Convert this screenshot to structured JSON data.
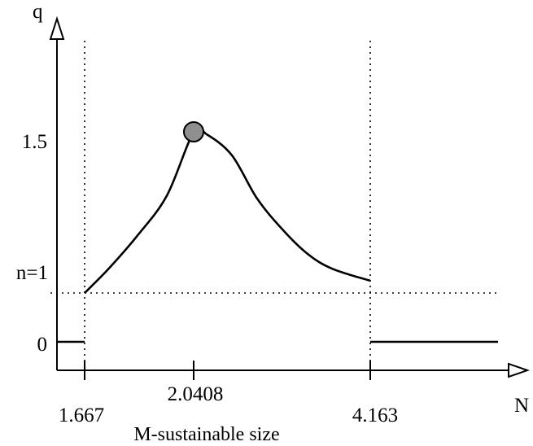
{
  "chart_data": {
    "type": "line",
    "title": "",
    "xlabel": "N",
    "ylabel": "q",
    "caption": "M-sustainable size",
    "x_ticks": [
      {
        "value": 1.667,
        "label": "1.667"
      },
      {
        "value": 2.0408,
        "label": "2.0408"
      },
      {
        "value": 4.163,
        "label": "4.163"
      }
    ],
    "y_ticks": [
      {
        "value": 0,
        "label": "0"
      },
      {
        "value": 1,
        "label": "n=1"
      },
      {
        "value": 1.5,
        "label": "1.5"
      }
    ],
    "series": [
      {
        "points": [
          [
            1.667,
            1.0
          ],
          [
            1.75,
            1.08
          ],
          [
            1.85,
            1.19
          ],
          [
            1.95,
            1.32
          ],
          [
            2.0408,
            1.59
          ],
          [
            2.2,
            1.56
          ],
          [
            2.5,
            1.45
          ],
          [
            2.8,
            1.31
          ],
          [
            3.1,
            1.21
          ],
          [
            3.4,
            1.13
          ],
          [
            3.7,
            1.08
          ],
          [
            4.163,
            1.04
          ]
        ]
      },
      {
        "points": [
          [
            1.55,
            0
          ],
          [
            1.667,
            0
          ]
        ]
      },
      {
        "points": [
          [
            4.163,
            0
          ],
          [
            5.6,
            0
          ]
        ]
      }
    ],
    "peak": {
      "x": 2.0408,
      "y": 1.59
    },
    "reference_lines": {
      "vertical_x": [
        1.667,
        4.163
      ],
      "horizontal_y": [
        1
      ]
    }
  }
}
